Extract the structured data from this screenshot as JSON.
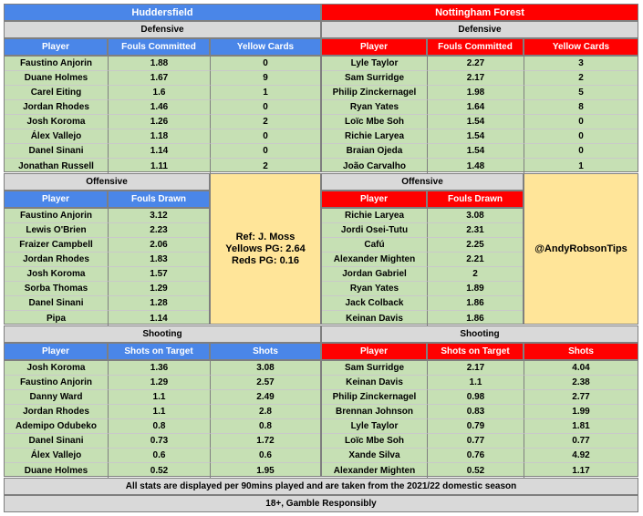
{
  "teams": {
    "home": "Huddersfield",
    "away": "Nottingham Forest"
  },
  "sections": {
    "defensive": "Defensive",
    "offensive": "Offensive",
    "shooting": "Shooting"
  },
  "columns": {
    "player": "Player",
    "fouls_committed": "Fouls Committed",
    "yellow_cards": "Yellow Cards",
    "fouls_drawn": "Fouls Drawn",
    "shots_on_target": "Shots on Target",
    "shots": "Shots"
  },
  "home_defensive": [
    [
      "Faustino Anjorin",
      "1.88",
      "0"
    ],
    [
      "Duane Holmes",
      "1.67",
      "9"
    ],
    [
      "Carel Eiting",
      "1.6",
      "1"
    ],
    [
      "Jordan Rhodes",
      "1.46",
      "0"
    ],
    [
      "Josh Koroma",
      "1.26",
      "2"
    ],
    [
      "Álex Vallejo",
      "1.18",
      "0"
    ],
    [
      "Danel Sinani",
      "1.14",
      "0"
    ],
    [
      "Jonathan Russell",
      "1.11",
      "2"
    ]
  ],
  "away_defensive": [
    [
      "Lyle Taylor",
      "2.27",
      "3"
    ],
    [
      "Sam Surridge",
      "2.17",
      "2"
    ],
    [
      "Philip Zinckernagel",
      "1.98",
      "5"
    ],
    [
      "Ryan Yates",
      "1.64",
      "8"
    ],
    [
      "Loïc Mbe Soh",
      "1.54",
      "0"
    ],
    [
      "Richie Laryea",
      "1.54",
      "0"
    ],
    [
      "Braian Ojeda",
      "1.54",
      "0"
    ],
    [
      "João Carvalho",
      "1.48",
      "1"
    ]
  ],
  "home_offensive": [
    [
      "Faustino Anjorin",
      "3.12"
    ],
    [
      "Lewis O'Brien",
      "2.23"
    ],
    [
      "Fraizer Campbell",
      "2.06"
    ],
    [
      "Jordan Rhodes",
      "1.83"
    ],
    [
      "Josh Koroma",
      "1.57"
    ],
    [
      "Sorba Thomas",
      "1.29"
    ],
    [
      "Danel Sinani",
      "1.28"
    ],
    [
      "Pipa",
      "1.14"
    ]
  ],
  "away_offensive": [
    [
      "Richie Laryea",
      "3.08"
    ],
    [
      "Jordi Osei-Tutu",
      "2.31"
    ],
    [
      "Cafú",
      "2.25"
    ],
    [
      "Alexander Mighten",
      "2.21"
    ],
    [
      "Jordan Gabriel",
      "2"
    ],
    [
      "Ryan Yates",
      "1.89"
    ],
    [
      "Jack Colback",
      "1.86"
    ],
    [
      "Keinan Davis",
      "1.86"
    ]
  ],
  "referee": {
    "name": "Ref: J. Moss",
    "yellows": "Yellows PG: 2.64",
    "reds": "Reds PG: 0.16"
  },
  "tipster": "@AndyRobsonTips",
  "home_shooting": [
    [
      "Josh Koroma",
      "1.36",
      "3.08"
    ],
    [
      "Faustino Anjorin",
      "1.29",
      "2.57"
    ],
    [
      "Danny Ward",
      "1.1",
      "2.49"
    ],
    [
      "Jordan Rhodes",
      "1.1",
      "2.8"
    ],
    [
      "Ademipo Odubeko",
      "0.8",
      "0.8"
    ],
    [
      "Danel Sinani",
      "0.73",
      "1.72"
    ],
    [
      "Álex Vallejo",
      "0.6",
      "0.6"
    ],
    [
      "Duane Holmes",
      "0.52",
      "1.95"
    ]
  ],
  "away_shooting": [
    [
      "Sam Surridge",
      "2.17",
      "4.04"
    ],
    [
      "Keinan Davis",
      "1.1",
      "2.38"
    ],
    [
      "Philip Zinckernagel",
      "0.98",
      "2.77"
    ],
    [
      "Brennan Johnson",
      "0.83",
      "1.99"
    ],
    [
      "Lyle Taylor",
      "0.79",
      "1.81"
    ],
    [
      "Loïc Mbe Soh",
      "0.77",
      "0.77"
    ],
    [
      "Xande Silva",
      "0.76",
      "4.92"
    ],
    [
      "Alexander Mighten",
      "0.52",
      "1.17"
    ]
  ],
  "footer": {
    "note": "All stats are displayed per 90mins played and are taken from the 2021/22 domestic season",
    "gamble": "18+, Gamble Responsibly"
  },
  "colors": {
    "home_header": "#4a86e8",
    "away_header": "#ff0000",
    "section": "#d9d9d9",
    "rows": "#c6e0b4",
    "info_box": "#ffe599"
  }
}
